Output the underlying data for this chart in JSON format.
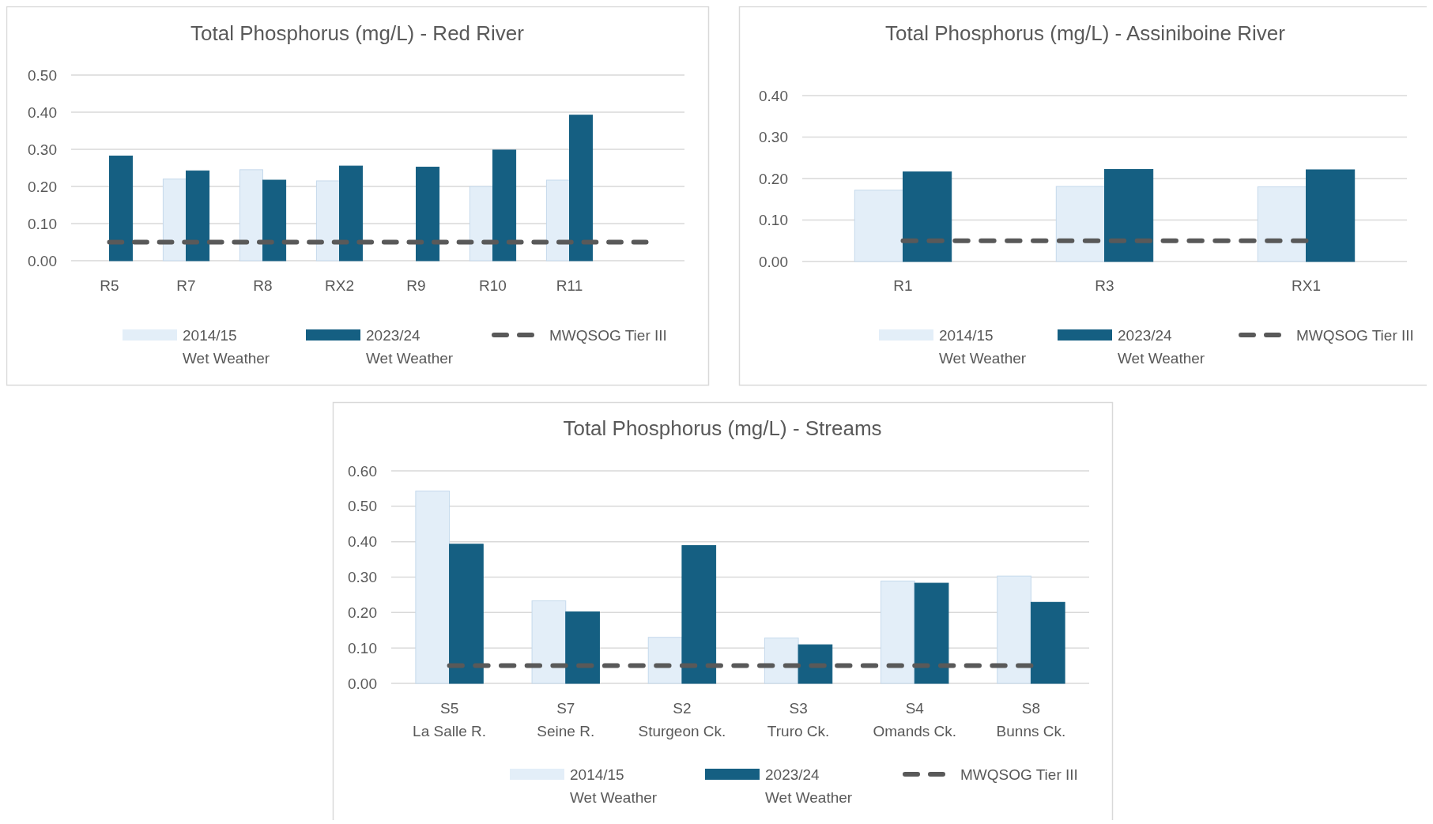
{
  "chart_data": [
    {
      "type": "bar",
      "title": "Total Phosphorus (mg/L) - Red River",
      "categories": [
        "R5",
        "R7",
        "R8",
        "RX2",
        "R9",
        "R10",
        "R11",
        null
      ],
      "ylim": [
        0,
        0.5
      ],
      "yticks": [
        {
          "value": 0,
          "label": "0.00"
        },
        {
          "value": 0.1,
          "label": "0.10"
        },
        {
          "value": 0.2,
          "label": "0.20"
        },
        {
          "value": 0.3,
          "label": "0.30"
        },
        {
          "value": 0.4,
          "label": "0.40"
        },
        {
          "value": 0.5,
          "label": "0.50"
        }
      ],
      "grid": "y",
      "legend": "bottom",
      "series": [
        {
          "name": "2014/15 Wet Weather",
          "color": "#e3eef8",
          "values": [
            null,
            0.22,
            0.245,
            0.215,
            null,
            0.2,
            0.217,
            null
          ]
        },
        {
          "name": "2023/24 Wet Weather",
          "color": "#155f82",
          "values": [
            0.282,
            0.242,
            0.217,
            0.255,
            0.252,
            0.298,
            0.392,
            null
          ]
        },
        {
          "name": "MWQSOG Tier III",
          "type": "line",
          "line_style": "dashed",
          "color": "#595959",
          "values": [
            0.05,
            0.05,
            0.05,
            0.05,
            0.05,
            0.05,
            0.05,
            0.05
          ]
        }
      ]
    },
    {
      "type": "bar",
      "title": "Total Phosphorus (mg/L) - Assiniboine River",
      "categories": [
        "R1",
        "R3",
        "RX1"
      ],
      "ylim": [
        0,
        0.4
      ],
      "yticks": [
        {
          "value": 0,
          "label": "0.00"
        },
        {
          "value": 0.1,
          "label": "0.10"
        },
        {
          "value": 0.2,
          "label": "0.20"
        },
        {
          "value": 0.3,
          "label": "0.30"
        },
        {
          "value": 0.4,
          "label": "0.40"
        }
      ],
      "grid": "y",
      "legend": "bottom",
      "series": [
        {
          "name": "2014/15 Wet Weather",
          "color": "#e3eef8",
          "values": [
            0.172,
            0.181,
            0.18
          ]
        },
        {
          "name": "2023/24 Wet Weather",
          "color": "#155f82",
          "values": [
            0.216,
            0.222,
            0.221
          ]
        },
        {
          "name": "MWQSOG Tier III",
          "type": "line",
          "line_style": "dashed",
          "color": "#595959",
          "values": [
            0.05,
            0.05,
            0.05
          ]
        }
      ]
    },
    {
      "type": "bar",
      "title": "Total Phosphorus (mg/L) - Streams",
      "categories": [
        "S5\nLa Salle R.",
        "S7\nSeine R.",
        "S2\nSturgeon Ck.",
        "S3\nTruro Ck.",
        "S4\nOmands Ck.",
        "S8\nBunns Ck."
      ],
      "ylim": [
        0,
        0.6
      ],
      "yticks": [
        {
          "value": 0,
          "label": "0.00"
        },
        {
          "value": 0.1,
          "label": "0.10"
        },
        {
          "value": 0.2,
          "label": "0.20"
        },
        {
          "value": 0.3,
          "label": "0.30"
        },
        {
          "value": 0.4,
          "label": "0.40"
        },
        {
          "value": 0.5,
          "label": "0.50"
        },
        {
          "value": 0.6,
          "label": "0.60"
        }
      ],
      "grid": "y",
      "legend": "bottom",
      "series": [
        {
          "name": "2014/15 Wet Weather",
          "color": "#e3eef8",
          "values": [
            0.543,
            0.233,
            0.13,
            0.128,
            0.289,
            0.303
          ]
        },
        {
          "name": "2023/24 Wet Weather",
          "color": "#155f82",
          "values": [
            0.393,
            0.202,
            0.389,
            0.109,
            0.283,
            0.229
          ]
        },
        {
          "name": "MWQSOG Tier III",
          "type": "line",
          "line_style": "dashed",
          "color": "#595959",
          "values": [
            0.05,
            0.05,
            0.05,
            0.05,
            0.05,
            0.05
          ]
        }
      ]
    }
  ]
}
